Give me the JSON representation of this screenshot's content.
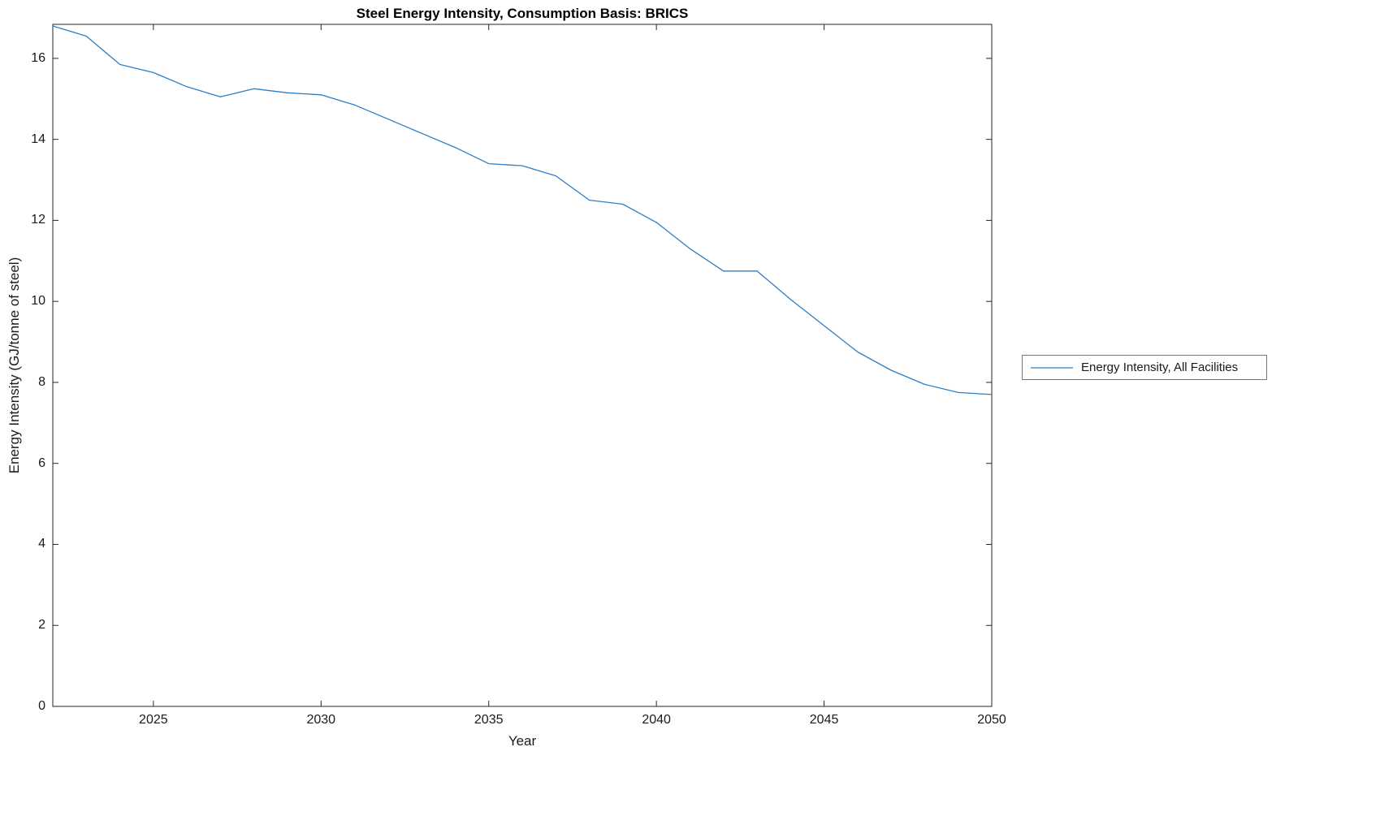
{
  "chart_data": {
    "type": "line",
    "title": "Steel Energy Intensity, Consumption Basis: BRICS",
    "xlabel": "Year",
    "ylabel": "Energy Intensity (GJ/tonne of steel)",
    "xlim": [
      2022,
      2050
    ],
    "ylim": [
      0,
      16.84
    ],
    "xticks": [
      2025,
      2030,
      2035,
      2040,
      2045,
      2050
    ],
    "yticks": [
      0,
      2,
      4,
      6,
      8,
      10,
      12,
      14,
      16
    ],
    "grid": false,
    "line_color": "#2e7ec6",
    "axis_color": "#262626",
    "legend": {
      "position": "right",
      "entries": [
        "Energy Intensity, All Facilities"
      ]
    },
    "series": [
      {
        "name": "Energy Intensity, All Facilities",
        "x": [
          2022,
          2023,
          2024,
          2025,
          2026,
          2027,
          2028,
          2029,
          2030,
          2031,
          2032,
          2033,
          2034,
          2035,
          2036,
          2037,
          2038,
          2039,
          2040,
          2041,
          2042,
          2043,
          2044,
          2045,
          2046,
          2047,
          2048,
          2049,
          2050
        ],
        "y": [
          16.8,
          16.55,
          15.85,
          15.65,
          15.3,
          15.05,
          15.25,
          15.15,
          15.1,
          14.85,
          14.5,
          14.15,
          13.8,
          13.4,
          13.35,
          13.1,
          12.5,
          12.4,
          11.95,
          11.3,
          10.75,
          10.75,
          10.05,
          9.4,
          8.75,
          8.3,
          7.95,
          7.75,
          7.7
        ]
      }
    ]
  }
}
